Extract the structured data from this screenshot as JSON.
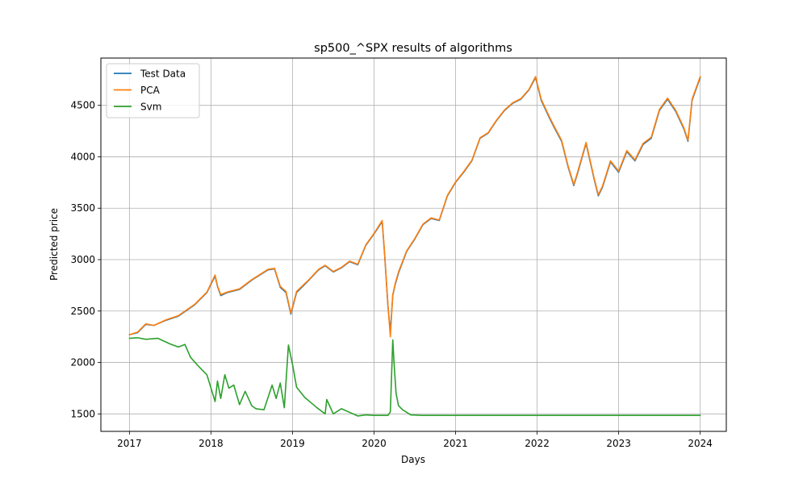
{
  "chart_data": {
    "type": "line",
    "title": "sp500_^SPX results of algorithms",
    "xlabel": "Days",
    "ylabel": "Predicted price",
    "xlim": [
      2016.65,
      2024.32
    ],
    "ylim": [
      1330,
      4960
    ],
    "x_ticks": [
      2017,
      2018,
      2019,
      2020,
      2021,
      2022,
      2023,
      2024
    ],
    "x_tick_labels": [
      "2017",
      "2018",
      "2019",
      "2020",
      "2021",
      "2022",
      "2023",
      "2024"
    ],
    "y_ticks": [
      1500,
      2000,
      2500,
      3000,
      3500,
      4000,
      4500
    ],
    "y_tick_labels": [
      "1500",
      "2000",
      "2500",
      "3000",
      "3500",
      "4000",
      "4500"
    ],
    "grid": true,
    "legend_position": "upper-left",
    "series": [
      {
        "name": "Test Data",
        "color": "#1f77b4",
        "x": [
          2017.0,
          2017.1,
          2017.2,
          2017.3,
          2017.45,
          2017.6,
          2017.8,
          2017.95,
          2018.05,
          2018.08,
          2018.12,
          2018.2,
          2018.35,
          2018.5,
          2018.7,
          2018.78,
          2018.85,
          2018.92,
          2018.98,
          2019.05,
          2019.2,
          2019.32,
          2019.4,
          2019.5,
          2019.6,
          2019.7,
          2019.8,
          2019.9,
          2020.0,
          2020.1,
          2020.13,
          2020.17,
          2020.2,
          2020.23,
          2020.26,
          2020.3,
          2020.4,
          2020.5,
          2020.6,
          2020.7,
          2020.8,
          2020.9,
          2021.0,
          2021.1,
          2021.2,
          2021.3,
          2021.4,
          2021.5,
          2021.6,
          2021.7,
          2021.8,
          2021.9,
          2021.98,
          2022.05,
          2022.15,
          2022.2,
          2022.3,
          2022.38,
          2022.45,
          2022.5,
          2022.6,
          2022.7,
          2022.75,
          2022.8,
          2022.9,
          2023.0,
          2023.1,
          2023.2,
          2023.3,
          2023.4,
          2023.5,
          2023.6,
          2023.7,
          2023.8,
          2023.85,
          2023.9,
          2024.0
        ],
        "y": [
          2270,
          2290,
          2370,
          2360,
          2410,
          2450,
          2560,
          2680,
          2840,
          2740,
          2650,
          2680,
          2710,
          2800,
          2900,
          2910,
          2730,
          2680,
          2470,
          2680,
          2800,
          2900,
          2940,
          2880,
          2920,
          2980,
          2950,
          3140,
          3250,
          3370,
          3050,
          2550,
          2300,
          2650,
          2760,
          2870,
          3080,
          3200,
          3340,
          3400,
          3380,
          3620,
          3750,
          3850,
          3960,
          4180,
          4230,
          4350,
          4450,
          4520,
          4560,
          4650,
          4770,
          4550,
          4380,
          4300,
          4150,
          3900,
          3720,
          3850,
          4130,
          3780,
          3620,
          3700,
          3950,
          3850,
          4050,
          3960,
          4120,
          4180,
          4450,
          4560,
          4440,
          4270,
          4150,
          4550,
          4770
        ]
      },
      {
        "name": "PCA",
        "color": "#ff7f0e",
        "x": [
          2017.0,
          2017.1,
          2017.2,
          2017.3,
          2017.45,
          2017.6,
          2017.8,
          2017.95,
          2018.05,
          2018.08,
          2018.12,
          2018.2,
          2018.35,
          2018.5,
          2018.7,
          2018.78,
          2018.85,
          2018.92,
          2018.98,
          2019.05,
          2019.2,
          2019.32,
          2019.4,
          2019.5,
          2019.6,
          2019.7,
          2019.8,
          2019.9,
          2020.0,
          2020.1,
          2020.13,
          2020.17,
          2020.2,
          2020.23,
          2020.26,
          2020.3,
          2020.4,
          2020.5,
          2020.6,
          2020.7,
          2020.8,
          2020.9,
          2021.0,
          2021.1,
          2021.2,
          2021.3,
          2021.4,
          2021.5,
          2021.6,
          2021.7,
          2021.8,
          2021.9,
          2021.98,
          2022.05,
          2022.15,
          2022.2,
          2022.3,
          2022.38,
          2022.45,
          2022.5,
          2022.6,
          2022.7,
          2022.75,
          2022.8,
          2022.9,
          2023.0,
          2023.1,
          2023.2,
          2023.3,
          2023.4,
          2023.5,
          2023.6,
          2023.7,
          2023.8,
          2023.85,
          2023.9,
          2024.0
        ],
        "y": [
          2270,
          2295,
          2375,
          2360,
          2415,
          2455,
          2565,
          2685,
          2850,
          2745,
          2660,
          2685,
          2715,
          2805,
          2905,
          2915,
          2740,
          2690,
          2480,
          2690,
          2805,
          2905,
          2945,
          2885,
          2925,
          2985,
          2955,
          3145,
          3255,
          3380,
          3060,
          2560,
          2250,
          2660,
          2770,
          2880,
          3085,
          3205,
          3345,
          3405,
          3385,
          3625,
          3755,
          3855,
          3965,
          4185,
          4235,
          4355,
          4455,
          4525,
          4565,
          4655,
          4780,
          4560,
          4390,
          4310,
          4160,
          3910,
          3730,
          3860,
          4140,
          3790,
          3630,
          3710,
          3960,
          3860,
          4060,
          3970,
          4130,
          4190,
          4460,
          4570,
          4450,
          4280,
          4160,
          4560,
          4780
        ]
      },
      {
        "name": "Svm",
        "color": "#2ca02c",
        "x": [
          2017.0,
          2017.1,
          2017.2,
          2017.35,
          2017.5,
          2017.6,
          2017.68,
          2017.75,
          2017.85,
          2017.95,
          2018.05,
          2018.08,
          2018.12,
          2018.17,
          2018.22,
          2018.28,
          2018.35,
          2018.42,
          2018.5,
          2018.55,
          2018.65,
          2018.75,
          2018.8,
          2018.85,
          2018.9,
          2018.95,
          2019.0,
          2019.05,
          2019.15,
          2019.3,
          2019.4,
          2019.42,
          2019.5,
          2019.6,
          2019.8,
          2019.9,
          2020.0,
          2020.17,
          2020.2,
          2020.23,
          2020.25,
          2020.27,
          2020.3,
          2020.35,
          2020.45,
          2020.6,
          2021.0,
          2022.0,
          2023.0,
          2024.0
        ],
        "y": [
          2235,
          2240,
          2225,
          2235,
          2180,
          2150,
          2175,
          2050,
          1960,
          1880,
          1620,
          1820,
          1650,
          1880,
          1750,
          1780,
          1590,
          1720,
          1580,
          1550,
          1540,
          1780,
          1650,
          1800,
          1560,
          2170,
          1980,
          1760,
          1660,
          1560,
          1500,
          1640,
          1500,
          1550,
          1480,
          1490,
          1485,
          1485,
          1520,
          2220,
          1930,
          1700,
          1580,
          1540,
          1490,
          1485,
          1485,
          1485,
          1485,
          1485
        ]
      }
    ]
  }
}
